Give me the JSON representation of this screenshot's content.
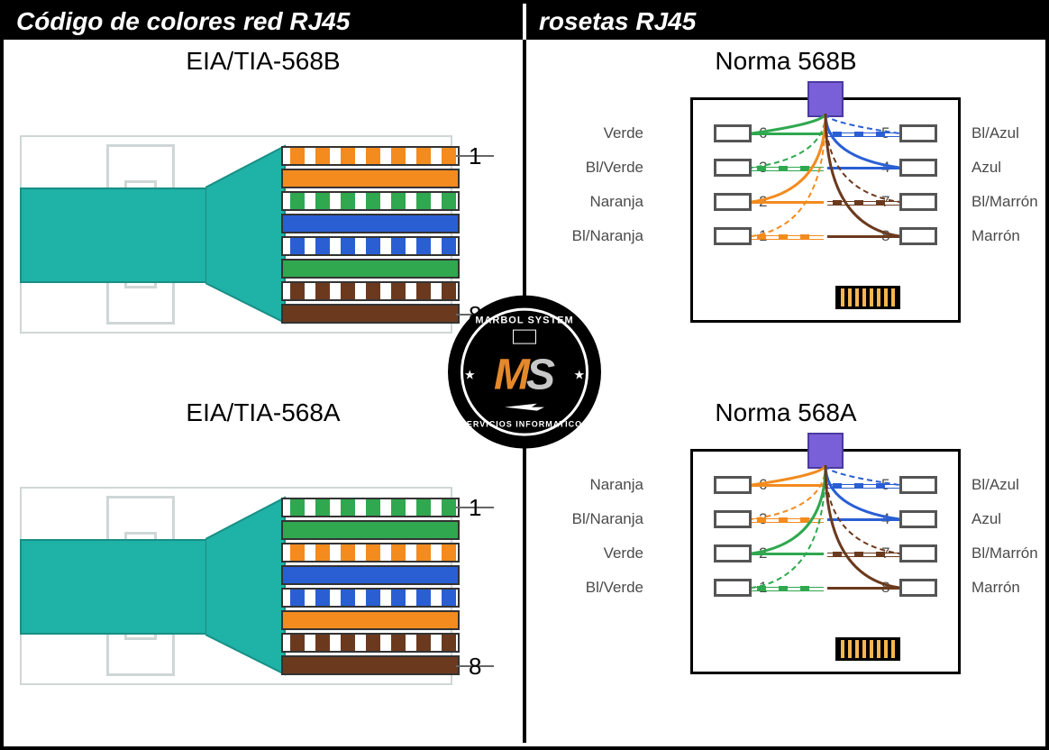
{
  "header": {
    "left": "Código de colores red RJ45",
    "right": "rosetas RJ45"
  },
  "plugs": {
    "b568": {
      "title": "EIA/TIA-568B",
      "pin_top": "1",
      "pin_bottom": "8",
      "wires": [
        {
          "type": "striped",
          "color": "#f38b1e"
        },
        {
          "type": "solid",
          "color": "#f38b1e"
        },
        {
          "type": "striped",
          "color": "#2fa84f"
        },
        {
          "type": "solid",
          "color": "#2a5fd4"
        },
        {
          "type": "striped",
          "color": "#2a5fd4"
        },
        {
          "type": "solid",
          "color": "#2fa84f"
        },
        {
          "type": "striped",
          "color": "#6b3a1e"
        },
        {
          "type": "solid",
          "color": "#6b3a1e"
        }
      ]
    },
    "a568": {
      "title": "EIA/TIA-568A",
      "pin_top": "1",
      "pin_bottom": "8",
      "wires": [
        {
          "type": "striped",
          "color": "#2fa84f"
        },
        {
          "type": "solid",
          "color": "#2fa84f"
        },
        {
          "type": "striped",
          "color": "#f38b1e"
        },
        {
          "type": "solid",
          "color": "#2a5fd4"
        },
        {
          "type": "striped",
          "color": "#2a5fd4"
        },
        {
          "type": "solid",
          "color": "#f38b1e"
        },
        {
          "type": "striped",
          "color": "#6b3a1e"
        },
        {
          "type": "solid",
          "color": "#6b3a1e"
        }
      ]
    }
  },
  "jacks": {
    "b568": {
      "title": "Norma 568B",
      "left": [
        {
          "num": "6",
          "label": "Verde",
          "color": "#2fa84f",
          "striped": false
        },
        {
          "num": "3",
          "label": "Bl/Verde",
          "color": "#2fa84f",
          "striped": true
        },
        {
          "num": "2",
          "label": "Naranja",
          "color": "#f38b1e",
          "striped": false
        },
        {
          "num": "1",
          "label": "Bl/Naranja",
          "color": "#f38b1e",
          "striped": true
        }
      ],
      "right": [
        {
          "num": "5",
          "label": "Bl/Azul",
          "color": "#2a5fd4",
          "striped": true
        },
        {
          "num": "4",
          "label": "Azul",
          "color": "#2a5fd4",
          "striped": false
        },
        {
          "num": "7",
          "label": "Bl/Marrón",
          "color": "#6b3a1e",
          "striped": true
        },
        {
          "num": "8",
          "label": "Marrón",
          "color": "#6b3a1e",
          "striped": false
        }
      ]
    },
    "a568": {
      "title": "Norma 568A",
      "left": [
        {
          "num": "6",
          "label": "Naranja",
          "color": "#f38b1e",
          "striped": false
        },
        {
          "num": "3",
          "label": "Bl/Naranja",
          "color": "#f38b1e",
          "striped": true
        },
        {
          "num": "2",
          "label": "Verde",
          "color": "#2fa84f",
          "striped": false
        },
        {
          "num": "1",
          "label": "Bl/Verde",
          "color": "#2fa84f",
          "striped": true
        }
      ],
      "right": [
        {
          "num": "5",
          "label": "Bl/Azul",
          "color": "#2a5fd4",
          "striped": true
        },
        {
          "num": "4",
          "label": "Azul",
          "color": "#2a5fd4",
          "striped": false
        },
        {
          "num": "7",
          "label": "Bl/Marrón",
          "color": "#6b3a1e",
          "striped": true
        },
        {
          "num": "8",
          "label": "Marrón",
          "color": "#6b3a1e",
          "striped": false
        }
      ]
    }
  },
  "logo": {
    "top": "MARBOL SYSTEM",
    "bottom": "SERVICIOS INFORMATICOS",
    "m": "M",
    "s": "S"
  },
  "colors": {
    "cable_jacket": "#1fb2a6",
    "jack_cable": "#7960d8",
    "background": "#ffffff",
    "border": "#000000"
  }
}
